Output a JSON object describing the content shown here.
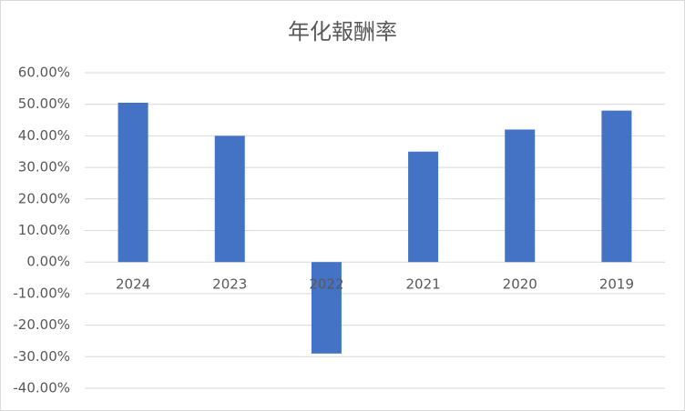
{
  "chart_data": {
    "type": "bar",
    "title": "年化報酬率",
    "categories": [
      "2024",
      "2023",
      "2022",
      "2021",
      "2020",
      "2019"
    ],
    "values": [
      50.5,
      40,
      -29,
      35,
      42,
      48
    ],
    "color": "#4472c4",
    "ylim": [
      -40,
      60
    ],
    "yticks": [
      {
        "value": -40,
        "label": "-40.00%"
      },
      {
        "value": -30,
        "label": "-30.00%"
      },
      {
        "value": -20,
        "label": "-20.00%"
      },
      {
        "value": -10,
        "label": "-10.00%"
      },
      {
        "value": 0,
        "label": "0.00%"
      },
      {
        "value": 10,
        "label": "10.00%"
      },
      {
        "value": 20,
        "label": "20.00%"
      },
      {
        "value": 30,
        "label": "30.00%"
      },
      {
        "value": 40,
        "label": "40.00%"
      },
      {
        "value": 50,
        "label": "50.00%"
      },
      {
        "value": 60,
        "label": "60.00%"
      }
    ],
    "grid": true
  }
}
